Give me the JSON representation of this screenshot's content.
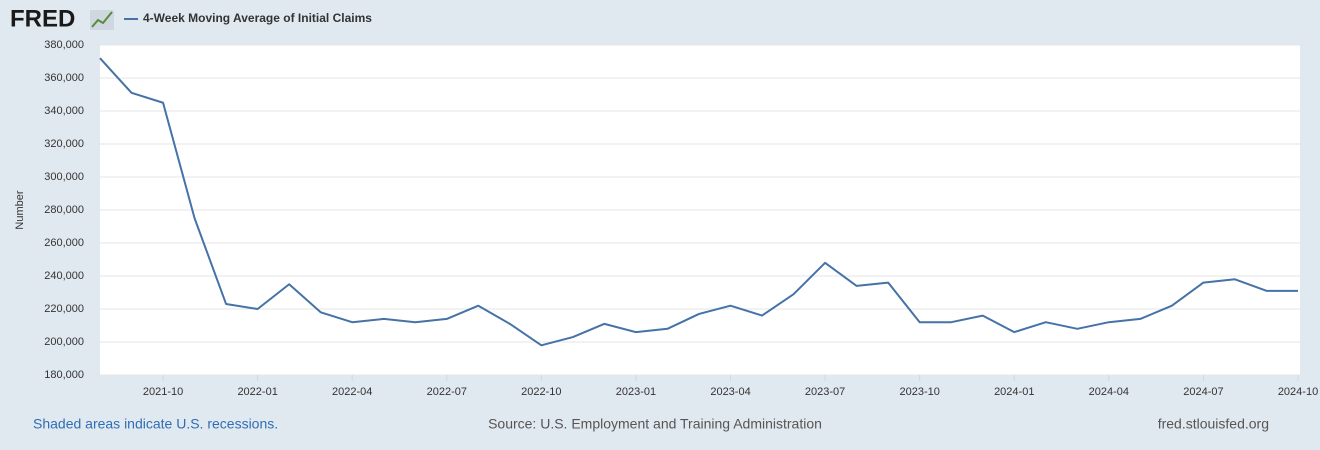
{
  "header": {
    "logo": "FRED"
  },
  "chart_data": {
    "type": "line",
    "title": "4-Week Moving Average of Initial Claims",
    "ylabel": "Number",
    "x": [
      "2021-08",
      "2021-09",
      "2021-10",
      "2021-11",
      "2021-12",
      "2022-01",
      "2022-02",
      "2022-03",
      "2022-04",
      "2022-05",
      "2022-06",
      "2022-07",
      "2022-08",
      "2022-09",
      "2022-10",
      "2022-11",
      "2022-12",
      "2023-01",
      "2023-02",
      "2023-03",
      "2023-04",
      "2023-05",
      "2023-06",
      "2023-07",
      "2023-08",
      "2023-09",
      "2023-10",
      "2023-11",
      "2023-12",
      "2024-01",
      "2024-02",
      "2024-03",
      "2024-04",
      "2024-05",
      "2024-06",
      "2024-07",
      "2024-08",
      "2024-09",
      "2024-10"
    ],
    "series": [
      {
        "name": "4-Week Moving Average of Initial Claims",
        "color": "#4572a7",
        "values": [
          372000,
          351000,
          345000,
          275000,
          223000,
          220000,
          235000,
          218000,
          212000,
          214000,
          212000,
          214000,
          222000,
          211000,
          198000,
          203000,
          211000,
          206000,
          208000,
          217000,
          222000,
          216000,
          229000,
          248000,
          234000,
          236000,
          212000,
          212000,
          216000,
          206000,
          212000,
          208000,
          212000,
          214000,
          222000,
          236000,
          238000,
          231000,
          231000
        ]
      }
    ],
    "xticks": [
      "2021-10",
      "2022-01",
      "2022-04",
      "2022-07",
      "2022-10",
      "2023-01",
      "2023-04",
      "2023-07",
      "2023-10",
      "2024-01",
      "2024-04",
      "2024-07",
      "2024-10"
    ],
    "ylim": [
      180000,
      380000
    ],
    "yticks": [
      {
        "value": 180000,
        "label": "180,000"
      },
      {
        "value": 200000,
        "label": "200,000"
      },
      {
        "value": 220000,
        "label": "220,000"
      },
      {
        "value": 240000,
        "label": "240,000"
      },
      {
        "value": 260000,
        "label": "260,000"
      },
      {
        "value": 280000,
        "label": "280,000"
      },
      {
        "value": 300000,
        "label": "300,000"
      },
      {
        "value": 320000,
        "label": "320,000"
      },
      {
        "value": 340000,
        "label": "340,000"
      },
      {
        "value": 360000,
        "label": "360,000"
      },
      {
        "value": 380000,
        "label": "380,000"
      }
    ],
    "grid": true
  },
  "footer": {
    "recessions": "Shaded areas indicate U.S. recessions.",
    "source": "Source: U.S. Employment and Training Administration",
    "site": "fred.stlouisfed.org"
  }
}
